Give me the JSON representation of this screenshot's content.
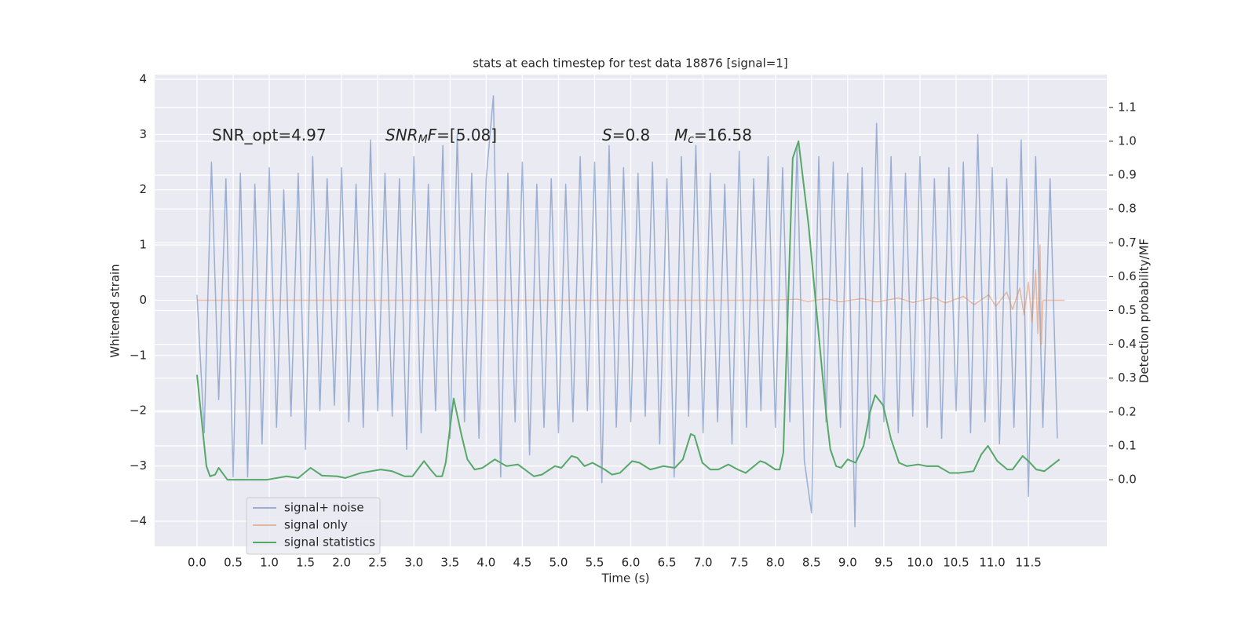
{
  "chart_data": {
    "type": "line",
    "title": "stats at each timestep for test data 18876 [signal=1]",
    "xlabel": "Time (s)",
    "ylabel": "Whitened strain",
    "y2label": "Detection probability/MF",
    "grid": true,
    "legend": "lower left",
    "xlim": [
      -0.586,
      12.585
    ],
    "ylim": [
      -4.455,
      4.085
    ],
    "y2lim": [
      -0.197,
      1.197
    ],
    "xticks": [
      {
        "value": 0,
        "label": "0.0"
      },
      0.5,
      {
        "value": 1,
        "label": "1.0"
      },
      1.5,
      {
        "value": 2,
        "label": "2.0"
      },
      2.5,
      {
        "value": 3,
        "label": "3.0"
      },
      3.5,
      {
        "value": 4,
        "label": "4.0"
      },
      4.5,
      {
        "value": 5,
        "label": "5.0"
      },
      5.5,
      {
        "value": 6,
        "label": "6.0"
      },
      6.5,
      {
        "value": 7,
        "label": "7.0"
      },
      7.5,
      {
        "value": 8,
        "label": "8.0"
      },
      8.5,
      {
        "value": 9,
        "label": "9.0"
      },
      9.5,
      {
        "value": 10,
        "label": "10.0"
      },
      10.5,
      {
        "value": 11,
        "label": "11.0"
      },
      11.5
    ],
    "yticks": [
      {
        "value": -4,
        "label": "−4"
      },
      {
        "value": -3,
        "label": "−3"
      },
      {
        "value": -2,
        "label": "−2"
      },
      {
        "value": -1,
        "label": "−1"
      },
      0,
      1,
      2,
      3,
      4
    ],
    "y2ticks": [
      {
        "value": 0,
        "label": "0.0"
      },
      0.1,
      0.2,
      0.3,
      0.4,
      0.5,
      0.6,
      0.7,
      0.8,
      0.9,
      {
        "value": 1,
        "label": "1.0"
      },
      1.1
    ],
    "annotations": [
      [
        {
          "text": "SNR_opt=4.97",
          "style": "normal"
        }
      ],
      [
        {
          "text": "SNR",
          "style": "italic"
        },
        {
          "text": "M",
          "style": "italic-sub"
        },
        {
          "text": "F",
          "style": "italic"
        },
        {
          "text": "=[5.08]",
          "style": "normal"
        }
      ],
      [
        {
          "text": "S",
          "style": "italic"
        },
        {
          "text": "=0.8",
          "style": "normal"
        }
      ],
      [
        {
          "text": "M",
          "style": "italic"
        },
        {
          "text": "c",
          "style": "italic-sub"
        },
        {
          "text": "=16.58",
          "style": "normal"
        }
      ]
    ],
    "series": [
      {
        "name": "signal+ noise",
        "color": "#4c72b0",
        "opacity": 0.5,
        "x": [
          0.0,
          0.1,
          0.2,
          0.3,
          0.4,
          0.5,
          0.6,
          0.7,
          0.8,
          0.9,
          1.0,
          1.1,
          1.2,
          1.3,
          1.4,
          1.5,
          1.6,
          1.7,
          1.8,
          1.9,
          2.0,
          2.1,
          2.2,
          2.3,
          2.4,
          2.5,
          2.6,
          2.7,
          2.8,
          2.9,
          3.0,
          3.1,
          3.2,
          3.3,
          3.4,
          3.5,
          3.6,
          3.7,
          3.8,
          3.9,
          4.0,
          4.1,
          4.2,
          4.3,
          4.4,
          4.5,
          4.6,
          4.7,
          4.8,
          4.9,
          5.0,
          5.1,
          5.2,
          5.3,
          5.4,
          5.5,
          5.6,
          5.7,
          5.8,
          5.9,
          6.0,
          6.1,
          6.2,
          6.3,
          6.4,
          6.5,
          6.6,
          6.7,
          6.8,
          6.9,
          7.0,
          7.1,
          7.2,
          7.3,
          7.4,
          7.5,
          7.6,
          7.7,
          7.8,
          7.9,
          8.0,
          8.1,
          8.2,
          8.3,
          8.4,
          8.5,
          8.6,
          8.7,
          8.8,
          8.9,
          9.0,
          9.1,
          9.2,
          9.3,
          9.4,
          9.5,
          9.6,
          9.7,
          9.8,
          9.9,
          10.0,
          10.1,
          10.2,
          10.3,
          10.4,
          10.5,
          10.6,
          10.7,
          10.8,
          10.9,
          11.0,
          11.1,
          11.2,
          11.3,
          11.4,
          11.5,
          11.6,
          11.7,
          11.8,
          11.9
        ],
        "values": [
          0.1,
          -2.4,
          2.5,
          -1.8,
          2.2,
          -3.2,
          2.3,
          -3.2,
          2.1,
          -2.6,
          2.4,
          -2.3,
          2.0,
          -2.1,
          2.3,
          -2.7,
          2.6,
          -2.0,
          2.2,
          -1.9,
          2.4,
          -2.2,
          2.1,
          -2.3,
          2.9,
          -2.0,
          2.3,
          -2.1,
          2.2,
          -2.7,
          2.6,
          -2.4,
          2.1,
          -2.0,
          2.8,
          -2.5,
          3.0,
          -2.2,
          2.3,
          -2.5,
          2.2,
          3.7,
          -3.2,
          2.3,
          -2.2,
          2.5,
          -2.8,
          2.1,
          -2.3,
          2.2,
          -2.4,
          2.1,
          -2.2,
          2.6,
          -2.0,
          2.5,
          -3.3,
          2.8,
          -2.3,
          2.4,
          -2.2,
          2.3,
          -2.1,
          2.5,
          -2.6,
          2.2,
          -3.2,
          2.6,
          -2.1,
          2.8,
          -2.4,
          2.3,
          -2.2,
          2.1,
          -2.6,
          2.7,
          -2.3,
          2.2,
          -2.0,
          2.6,
          -2.3,
          2.4,
          -2.2,
          2.8,
          -2.9,
          -3.85,
          2.6,
          -2.2,
          2.5,
          -2.3,
          2.3,
          -4.1,
          2.4,
          -2.5,
          3.2,
          -2.2,
          2.6,
          -2.4,
          2.3,
          -2.1,
          2.6,
          -2.3,
          2.2,
          -2.5,
          2.4,
          -2.0,
          2.5,
          -2.4,
          3.0,
          -2.2,
          2.4,
          -2.6,
          2.2,
          -2.3,
          2.9,
          -3.55,
          2.6,
          -2.3,
          2.2,
          -2.5
        ]
      },
      {
        "name": "signal only",
        "color": "#dd8452",
        "opacity": 0.5,
        "x": [
          0.0,
          8.0,
          8.3,
          8.45,
          8.7,
          8.9,
          9.2,
          9.4,
          9.7,
          9.9,
          10.2,
          10.35,
          10.6,
          10.75,
          10.95,
          11.05,
          11.2,
          11.28,
          11.38,
          11.44,
          11.5,
          11.55,
          11.6,
          11.63,
          11.66,
          11.68,
          11.7,
          12.0
        ],
        "values": [
          0,
          0,
          0.02,
          -0.02,
          0.025,
          -0.025,
          0.03,
          -0.03,
          0.04,
          -0.04,
          0.05,
          -0.05,
          0.07,
          -0.08,
          0.1,
          -0.11,
          0.15,
          -0.17,
          0.22,
          -0.26,
          0.33,
          -0.4,
          0.55,
          -0.6,
          1.0,
          -0.8,
          0,
          0
        ]
      },
      {
        "name": "signal statistics",
        "color": "#55a868",
        "axis": "y2",
        "x": [
          0.0,
          0.13,
          0.18,
          0.25,
          0.3,
          0.42,
          0.53,
          0.97,
          1.24,
          1.4,
          1.57,
          1.73,
          1.94,
          2.05,
          2.27,
          2.54,
          2.7,
          2.87,
          2.98,
          3.14,
          3.23,
          3.31,
          3.39,
          3.44,
          3.55,
          3.66,
          3.74,
          3.84,
          3.95,
          4.12,
          4.28,
          4.44,
          4.66,
          4.77,
          4.95,
          5.04,
          5.18,
          5.26,
          5.36,
          5.47,
          5.64,
          5.74,
          5.85,
          6.02,
          6.12,
          6.27,
          6.45,
          6.61,
          6.72,
          6.83,
          6.88,
          6.99,
          7.1,
          7.21,
          7.35,
          7.48,
          7.59,
          7.79,
          7.86,
          8.0,
          8.06,
          8.11,
          8.24,
          8.32,
          8.46,
          8.59,
          8.7,
          8.76,
          8.84,
          8.91,
          9.0,
          9.11,
          9.22,
          9.31,
          9.38,
          9.49,
          9.6,
          9.71,
          9.82,
          9.98,
          10.09,
          10.25,
          10.41,
          10.54,
          10.74,
          10.85,
          10.94,
          11.07,
          11.21,
          11.28,
          11.42,
          11.5,
          11.61,
          11.72,
          11.93
        ],
        "values": [
          0.31,
          0.04,
          0.01,
          0.015,
          0.035,
          0.0,
          0.0,
          0.0,
          0.01,
          0.005,
          0.035,
          0.012,
          0.01,
          0.005,
          0.02,
          0.03,
          0.025,
          0.01,
          0.01,
          0.055,
          0.03,
          0.01,
          0.01,
          0.05,
          0.24,
          0.13,
          0.06,
          0.03,
          0.035,
          0.06,
          0.04,
          0.045,
          0.01,
          0.015,
          0.04,
          0.035,
          0.07,
          0.065,
          0.04,
          0.05,
          0.03,
          0.015,
          0.02,
          0.055,
          0.05,
          0.03,
          0.04,
          0.035,
          0.06,
          0.135,
          0.13,
          0.05,
          0.03,
          0.03,
          0.045,
          0.03,
          0.02,
          0.055,
          0.05,
          0.03,
          0.03,
          0.08,
          0.95,
          1.0,
          0.75,
          0.45,
          0.2,
          0.09,
          0.04,
          0.035,
          0.06,
          0.05,
          0.1,
          0.2,
          0.25,
          0.22,
          0.12,
          0.05,
          0.04,
          0.045,
          0.04,
          0.04,
          0.02,
          0.02,
          0.025,
          0.075,
          0.1,
          0.055,
          0.03,
          0.03,
          0.07,
          0.055,
          0.03,
          0.025,
          0.06
        ]
      }
    ]
  }
}
